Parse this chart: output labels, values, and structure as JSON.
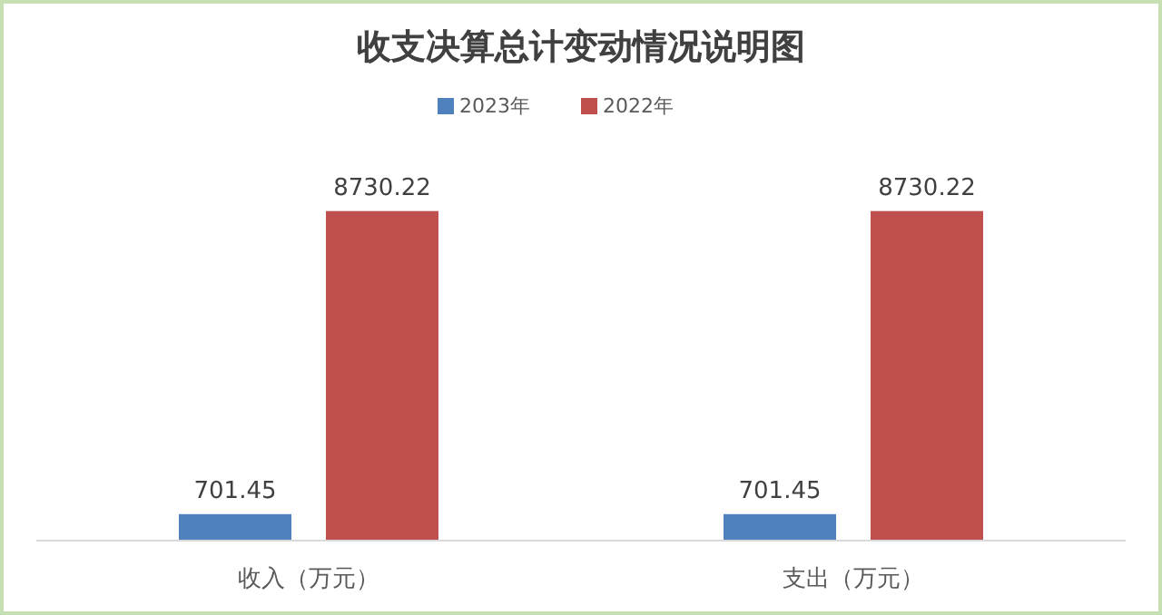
{
  "chart_data": {
    "type": "bar",
    "title": "收支决算总计变动情况说明图",
    "categories": [
      "收入（万元）",
      "支出（万元）"
    ],
    "series": [
      {
        "name": "2023年",
        "color": "#4f81bd",
        "values": [
          701.45,
          701.45
        ]
      },
      {
        "name": "2022年",
        "color": "#c0504d",
        "values": [
          8730.22,
          8730.22
        ]
      }
    ],
    "data_labels": true,
    "legend": "top"
  }
}
